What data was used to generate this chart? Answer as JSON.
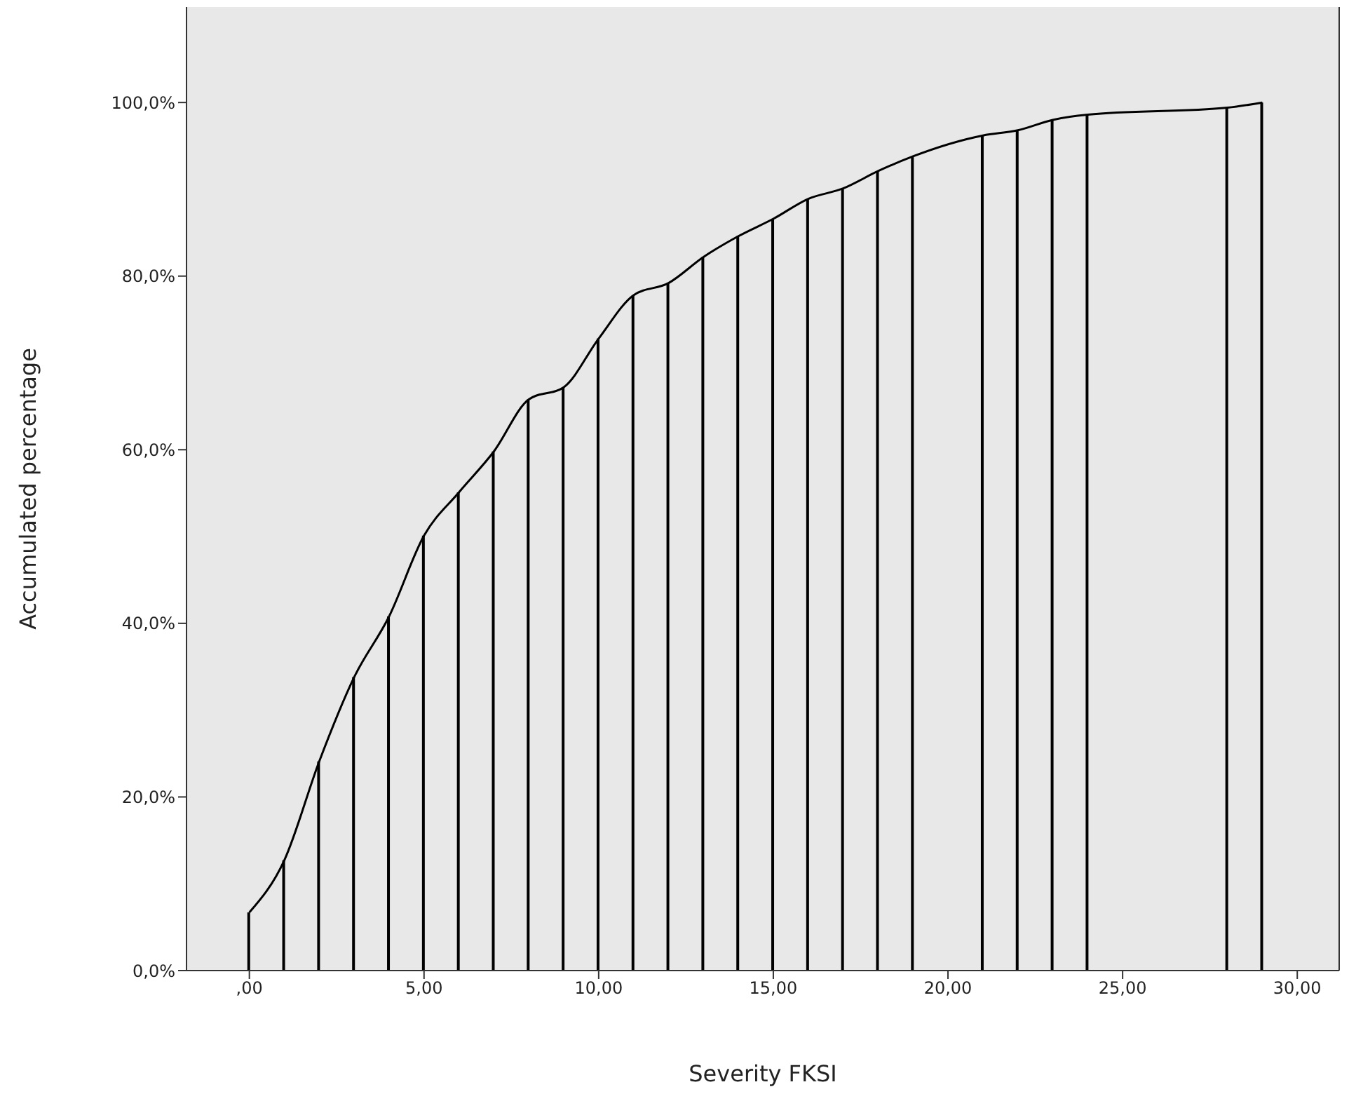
{
  "chart_data": {
    "type": "area",
    "xlabel": "Severity FKSI",
    "ylabel": "Accumulated percentage",
    "x": [
      0,
      1,
      2,
      3,
      4,
      5,
      6,
      7,
      8,
      9,
      10,
      11,
      12,
      13,
      14,
      15,
      16,
      17,
      18,
      19,
      21,
      22,
      23,
      24,
      28,
      29
    ],
    "series": [
      {
        "color": "#000000",
        "values": [
          6.7,
          12.7,
          24.1,
          33.8,
          40.8,
          50.1,
          55.1,
          59.8,
          65.8,
          67.2,
          72.8,
          77.8,
          79.2,
          82.2,
          84.6,
          86.6,
          88.9,
          90.1,
          92.1,
          93.8,
          96.2,
          96.8,
          98.0,
          98.6,
          99.4,
          100
        ]
      },
      {
        "type": "bar",
        "color": "#000000",
        "values": [
          6.7,
          12.7,
          24.1,
          33.8,
          40.8,
          50.1,
          55.1,
          59.8,
          65.8,
          67.2,
          72.8,
          77.8,
          79.2,
          82.2,
          84.6,
          86.6,
          88.9,
          90.1,
          92.1,
          93.8,
          96.2,
          96.8,
          98.0,
          98.6,
          99.4,
          100
        ]
      }
    ],
    "xlim": [
      -1.8,
      31.2
    ],
    "ylim": [
      0,
      111
    ],
    "xticks": [
      {
        "value": 0,
        "label": ",00"
      },
      {
        "value": 5,
        "label": "5,00"
      },
      {
        "value": 10,
        "label": "10,00"
      },
      {
        "value": 15,
        "label": "15,00"
      },
      {
        "value": 20,
        "label": "20,00"
      },
      {
        "value": 25,
        "label": "25,00"
      },
      {
        "value": 30,
        "label": "30,00"
      }
    ],
    "yticks": [
      {
        "value": 0,
        "label": "0,0%"
      },
      {
        "value": 20,
        "label": "20,0%"
      },
      {
        "value": 40,
        "label": "40,0%"
      },
      {
        "value": 60,
        "label": "60,0%"
      },
      {
        "value": 80,
        "label": "80,0%"
      },
      {
        "value": 100,
        "label": "100,0%"
      }
    ],
    "grid": false,
    "legend": false,
    "marker": "none",
    "line_style": "solid"
  }
}
